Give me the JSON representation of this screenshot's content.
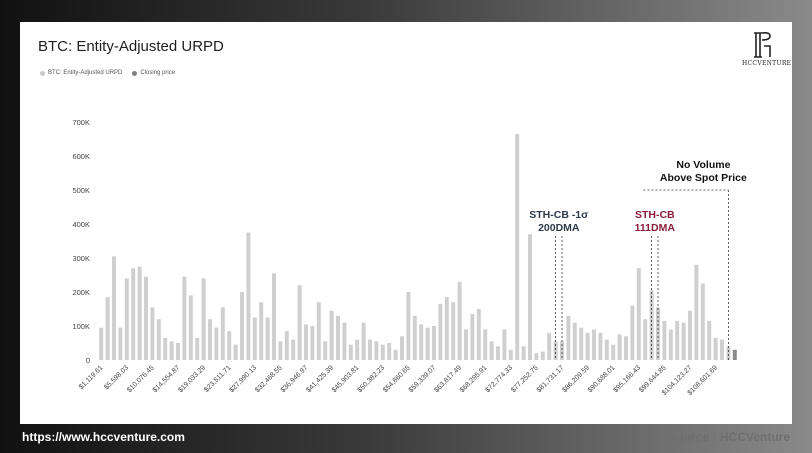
{
  "header": {
    "title": "BTC: Entity-Adjusted URPD"
  },
  "legend": [
    {
      "label": "BTC: Entity-Adjusted URPD",
      "color": "#c8c8c8"
    },
    {
      "label": "Closing price",
      "color": "#808080"
    }
  ],
  "logo": {
    "text": "HCCVENTURE"
  },
  "footer": {
    "url": "https://www.hccventure.com",
    "source": "Source : HCCVenture"
  },
  "colors": {
    "bar": "#cfcfcf",
    "price_bar": "#8a8a8a",
    "annotation_dark": "#2e3a4a",
    "annotation_red": "#8a1f3a",
    "axis_text": "#444444"
  },
  "chart_data": {
    "type": "bar",
    "title": "BTC: Entity-Adjusted URPD",
    "ylim": [
      0,
      700000
    ],
    "yticks": [
      0,
      100000,
      200000,
      300000,
      400000,
      500000,
      600000,
      700000
    ],
    "ytick_labels": [
      "0",
      "100K",
      "200K",
      "300K",
      "400K",
      "500K",
      "600K",
      "700K"
    ],
    "xtick_labels": [
      "$1,119.61",
      "$5,598.03",
      "$10,076.45",
      "$14,554.87",
      "$19,033.29",
      "$23,511.71",
      "$27,990.13",
      "$32,468.55",
      "$36,946.97",
      "$41,425.39",
      "$45,903.81",
      "$50,382.23",
      "$54,860.65",
      "$59,339.07",
      "$63,817.49",
      "$68,295.91",
      "$72,774.33",
      "$77,252.75",
      "$81,731.17",
      "$86,209.59",
      "$90,688.01",
      "$95,166.43",
      "$99,644.85",
      "$104,123.27",
      "$108,601.69"
    ],
    "values": [
      95000,
      185000,
      305000,
      95000,
      240000,
      270000,
      275000,
      245000,
      155000,
      120000,
      65000,
      55000,
      50000,
      245000,
      190000,
      65000,
      240000,
      120000,
      95000,
      155000,
      85000,
      45000,
      200000,
      375000,
      125000,
      170000,
      125000,
      255000,
      55000,
      85000,
      60000,
      220000,
      105000,
      100000,
      170000,
      55000,
      145000,
      130000,
      110000,
      45000,
      60000,
      110000,
      60000,
      55000,
      45000,
      50000,
      30000,
      70000,
      200000,
      130000,
      105000,
      95000,
      100000,
      165000,
      185000,
      170000,
      230000,
      90000,
      135000,
      150000,
      90000,
      55000,
      40000,
      90000,
      30000,
      665000,
      40000,
      370000,
      20000,
      25000,
      80000,
      55000,
      55000,
      130000,
      110000,
      95000,
      80000,
      90000,
      80000,
      60000,
      45000,
      75000,
      70000,
      160000,
      270000,
      120000,
      205000,
      155000,
      115000,
      90000,
      115000,
      110000,
      145000,
      280000,
      225000,
      115000,
      65000,
      60000,
      40000,
      30000
    ],
    "price_bar_index": 99,
    "annotations": [
      {
        "text": [
          "STH-CB -1σ",
          "200DMA"
        ],
        "color": "dark",
        "line_indices": [
          71,
          72
        ]
      },
      {
        "text": [
          "STH-CB",
          "111DMA"
        ],
        "color": "red",
        "line_indices": [
          86,
          87
        ]
      },
      {
        "text": [
          "No Volume",
          "Above Spot Price"
        ],
        "color": "black",
        "line_indices": [
          98
        ]
      }
    ]
  }
}
